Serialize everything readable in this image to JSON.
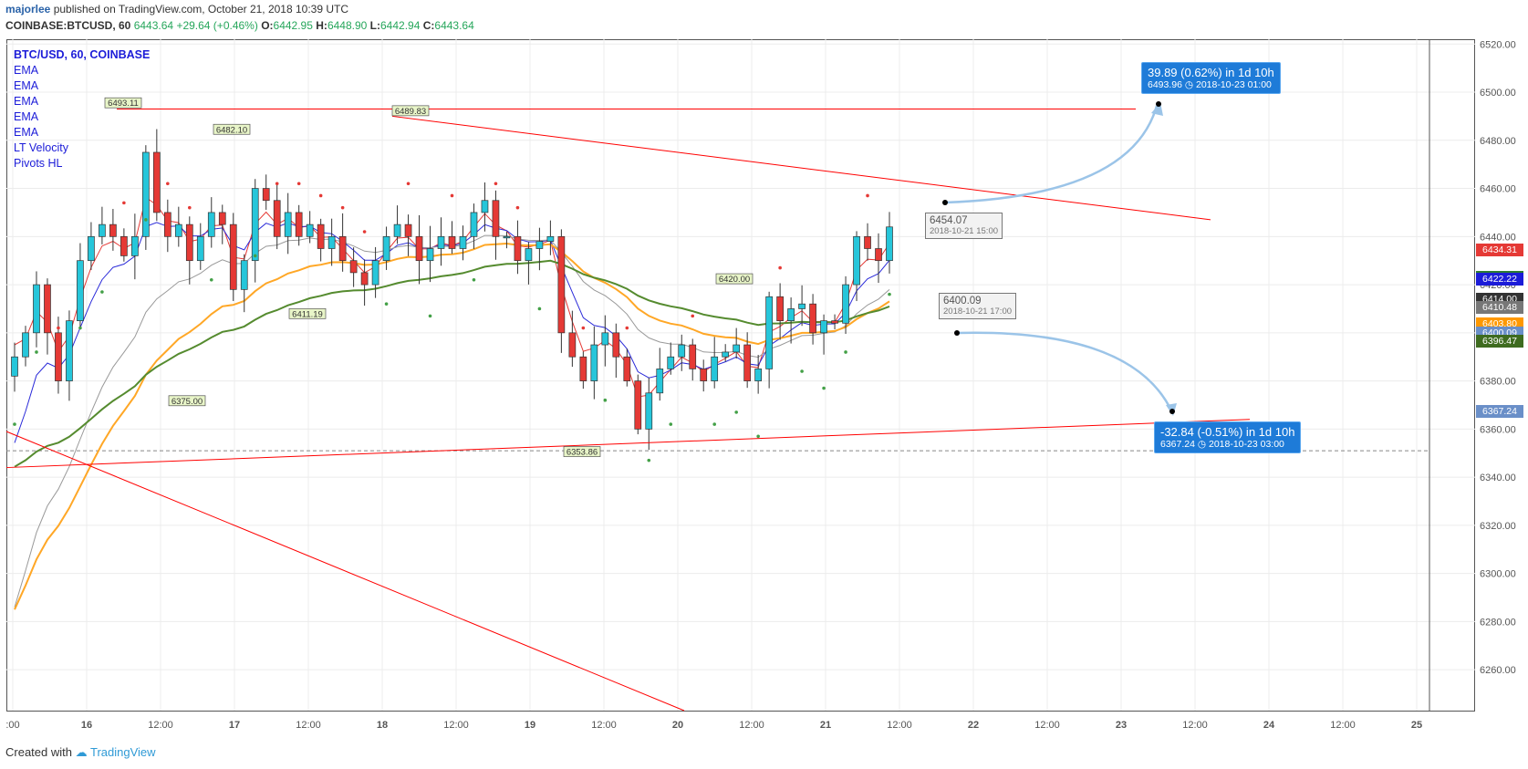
{
  "header": {
    "author": "majorlee",
    "published": "published on TradingView.com, October 21, 2018 10:39 UTC",
    "symbol": "COINBASE:BTCUSD, 60",
    "last": "6443.64",
    "change": "+29.64 (+0.46%)",
    "o_label": "O:",
    "o": "6442.95",
    "h_label": "H:",
    "h": "6448.90",
    "l_label": "L:",
    "l": "6442.94",
    "c_label": "C:",
    "c": "6443.64"
  },
  "legend": {
    "title": "BTC/USD, 60, COINBASE",
    "items": [
      "EMA",
      "EMA",
      "EMA",
      "EMA",
      "EMA",
      "LT Velocity",
      "Pivots HL"
    ]
  },
  "footer": {
    "created_with": "Created with",
    "brand": "TradingView"
  },
  "colors": {
    "up": "#26c6da",
    "down": "#e53935",
    "trend": "#ff0000",
    "ema_fast": "#e53935",
    "ema_blue": "#2b2bd9",
    "ema_gray": "#999999",
    "ema_orange": "#ffa726",
    "ema_green": "#558b2f",
    "projection": "#9bc4e8",
    "proj_box": "#1e7bd8"
  },
  "price_tags": [
    {
      "price": 6434.31,
      "text": "6434.31",
      "color": "#e53935"
    },
    {
      "price": 6423.25,
      "text": "6423.25",
      "color": "#2e7d32"
    },
    {
      "price": 6422.22,
      "text": "6422.22",
      "color": "#1c1cd8"
    },
    {
      "price": 6414.0,
      "text": "6414.00",
      "color": "#333333"
    },
    {
      "price": 6410.48,
      "text": "6410.48",
      "color": "#777777"
    },
    {
      "price": 6403.8,
      "text": "6403.80",
      "color": "#ff9800"
    },
    {
      "price": 6400.09,
      "text": "6400.09",
      "color": "#6a8fc8"
    },
    {
      "price": 6396.47,
      "text": "6396.47",
      "color": "#3e6b1f"
    },
    {
      "price": 6367.24,
      "text": "6367.24",
      "color": "#6a8fc8"
    }
  ],
  "annotations": {
    "up": {
      "line1": "39.89 (0.62%) in 1d 10h",
      "line2": "6493.96",
      "line3": "2018-10-23  01:00"
    },
    "down": {
      "line1": "-32.84 (-0.51%) in 1d 10h",
      "line2": "6367.24",
      "line3": "2018-10-23  03:00"
    },
    "note1": {
      "price": "6454.07",
      "date": "2018-10-21 15:00"
    },
    "note2": {
      "price": "6400.09",
      "date": "2018-10-21 17:00"
    }
  },
  "chart_data": {
    "type": "candlestick",
    "symbol": "BTC/USD",
    "interval": "60",
    "x_ticks": [
      ":00",
      "16",
      "12:00",
      "17",
      "12:00",
      "18",
      "12:00",
      "19",
      "12:00",
      "20",
      "12:00",
      "21",
      "12:00",
      "22",
      "12:00",
      "23",
      "12:00",
      "24",
      "12:00",
      "25"
    ],
    "y_ticks": [
      6260,
      6280,
      6300,
      6320,
      6340,
      6360,
      6380,
      6400,
      6420,
      6440,
      6460,
      6480,
      6500,
      6520
    ],
    "y_tick_labels": [
      "6260.00",
      "6280.00",
      "6300.00",
      "6320.00",
      "6340.00",
      "6360.00",
      "6380.00",
      "6400.00",
      "6420.00",
      "6440.00",
      "6460.00",
      "6480.00",
      "6500.00",
      "6520.00"
    ],
    "ylim": [
      6243,
      6522
    ],
    "pivots": [
      {
        "label": "6493.11",
        "price": 6493.11,
        "type": "high"
      },
      {
        "label": "6482.10",
        "price": 6482.1,
        "type": "high"
      },
      {
        "label": "6489.83",
        "price": 6489.83,
        "type": "high"
      },
      {
        "label": "6420.00",
        "price": 6420.0,
        "type": "high"
      },
      {
        "label": "6411.19",
        "price": 6411.19,
        "type": "low"
      },
      {
        "label": "6375.00",
        "price": 6375.0,
        "type": "low"
      },
      {
        "label": "6353.86",
        "price": 6353.86,
        "type": "low"
      }
    ],
    "close_path": [
      6390,
      6400,
      6420,
      6400,
      6380,
      6405,
      6430,
      6440,
      6445,
      6440,
      6432,
      6440,
      6475,
      6450,
      6440,
      6445,
      6430,
      6440,
      6450,
      6445,
      6418,
      6430,
      6460,
      6455,
      6440,
      6450,
      6440,
      6445,
      6435,
      6440,
      6430,
      6425,
      6420,
      6430,
      6440,
      6445,
      6440,
      6430,
      6435,
      6440,
      6435,
      6440,
      6450,
      6455,
      6440,
      6440,
      6430,
      6435,
      6438,
      6440,
      6400,
      6390,
      6380,
      6395,
      6400,
      6390,
      6380,
      6360,
      6375,
      6385,
      6390,
      6395,
      6385,
      6380,
      6390,
      6392,
      6395,
      6380,
      6385,
      6415,
      6405,
      6410,
      6412,
      6400,
      6405,
      6404,
      6420,
      6440,
      6435,
      6430,
      6444
    ],
    "dashed_level": 6351
  }
}
